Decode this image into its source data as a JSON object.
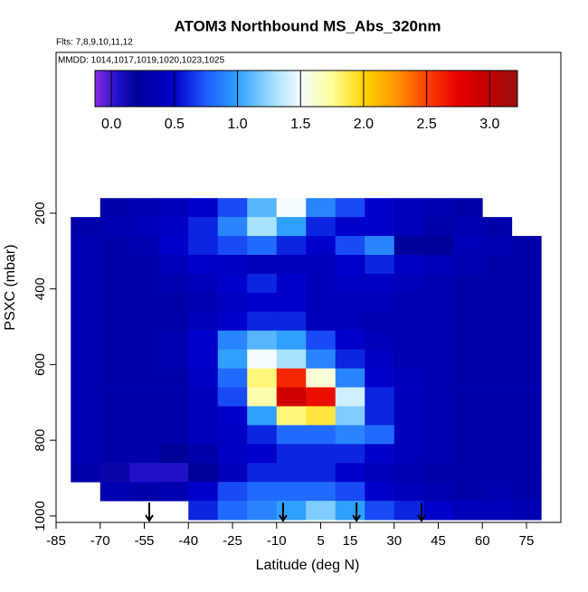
{
  "chart_data": {
    "type": "heatmap",
    "title": "ATOM3 Northbound MS_Abs_320nm",
    "subtitle": "Flts: 7,8,9,10,11,12",
    "annotation": "MMDD: 1014,1017,1019,1020,1023,1025",
    "xlabel": "Latitude (deg N)",
    "ylabel": "PSXC (mbar)",
    "xlim": [
      -85,
      86.7
    ],
    "xticks": [
      -85,
      -70,
      -55,
      -40,
      -25,
      -10,
      5,
      15,
      30,
      45,
      60,
      75
    ],
    "ylim": [
      1017,
      -225
    ],
    "yticks": [
      200,
      400,
      600,
      800,
      1000
    ],
    "x_bins": [
      -80,
      -70,
      -60,
      -50,
      -40,
      -30,
      -20,
      -10,
      0,
      10,
      20,
      30,
      40,
      50,
      60,
      70,
      80
    ],
    "y_bins": [
      160,
      210,
      260,
      310,
      360,
      410,
      460,
      510,
      560,
      610,
      660,
      710,
      760,
      810,
      860,
      910,
      960,
      1010
    ],
    "values": [
      [
        null,
        0.3,
        0.35,
        0.4,
        0.5,
        0.7,
        1.1,
        1.5,
        0.9,
        0.7,
        0.5,
        0.4,
        0.35,
        0.3,
        null,
        null
      ],
      [
        0.3,
        0.35,
        0.4,
        0.45,
        0.6,
        0.9,
        1.3,
        1.0,
        0.6,
        0.5,
        0.5,
        0.4,
        0.3,
        0.35,
        0.3,
        null
      ],
      [
        0.35,
        0.3,
        0.35,
        0.5,
        0.6,
        0.7,
        0.8,
        0.6,
        0.5,
        0.7,
        0.9,
        0.2,
        0.2,
        0.4,
        0.35,
        0.3
      ],
      [
        0.35,
        0.3,
        0.3,
        0.4,
        0.5,
        0.45,
        0.4,
        0.4,
        0.4,
        0.5,
        0.6,
        0.45,
        0.4,
        0.35,
        0.3,
        0.3
      ],
      [
        0.35,
        0.3,
        0.3,
        0.35,
        0.4,
        0.5,
        0.6,
        0.5,
        0.4,
        0.45,
        0.45,
        0.4,
        0.35,
        0.3,
        0.3,
        0.3
      ],
      [
        0.35,
        0.3,
        0.3,
        0.3,
        0.35,
        0.45,
        0.5,
        0.5,
        0.4,
        0.4,
        0.4,
        0.35,
        0.35,
        0.3,
        0.3,
        0.3
      ],
      [
        0.35,
        0.3,
        0.3,
        0.3,
        0.4,
        0.5,
        0.6,
        0.6,
        0.4,
        0.4,
        0.35,
        0.35,
        0.35,
        0.3,
        0.3,
        0.3
      ],
      [
        0.35,
        0.3,
        0.3,
        0.35,
        0.5,
        0.9,
        1.1,
        1.0,
        0.7,
        0.5,
        0.4,
        0.35,
        0.35,
        0.3,
        0.3,
        0.3
      ],
      [
        0.35,
        0.3,
        0.3,
        0.35,
        0.5,
        1.0,
        1.5,
        1.3,
        0.9,
        0.6,
        0.45,
        0.35,
        0.35,
        0.3,
        0.3,
        0.3
      ],
      [
        0.35,
        0.3,
        0.3,
        0.3,
        0.45,
        0.8,
        1.8,
        2.6,
        1.6,
        0.9,
        0.5,
        0.4,
        0.35,
        0.3,
        0.3,
        0.3
      ],
      [
        0.35,
        0.3,
        0.3,
        0.3,
        0.4,
        0.7,
        1.7,
        2.9,
        2.7,
        1.4,
        0.6,
        0.4,
        0.35,
        0.3,
        0.3,
        0.3
      ],
      [
        0.35,
        0.3,
        0.3,
        0.3,
        0.4,
        0.5,
        1.0,
        1.8,
        1.9,
        1.2,
        0.6,
        0.4,
        0.35,
        0.3,
        0.3,
        0.3
      ],
      [
        0.35,
        0.3,
        0.3,
        0.3,
        0.4,
        0.45,
        0.6,
        0.8,
        0.8,
        0.9,
        0.8,
        0.4,
        0.35,
        0.3,
        0.3,
        0.3
      ],
      [
        0.35,
        0.3,
        0.3,
        0.2,
        0.3,
        0.45,
        0.5,
        0.6,
        0.6,
        0.6,
        0.5,
        0.4,
        0.35,
        0.3,
        0.3,
        0.3
      ],
      [
        0.3,
        0.15,
        0.05,
        0.05,
        0.2,
        0.4,
        0.6,
        0.6,
        0.6,
        0.5,
        0.4,
        0.35,
        0.3,
        0.3,
        0.3,
        0.3
      ],
      [
        null,
        0.35,
        0.3,
        0.35,
        0.5,
        0.7,
        0.8,
        0.8,
        0.8,
        0.7,
        0.5,
        0.4,
        0.35,
        0.3,
        0.35,
        0.3
      ],
      [
        null,
        null,
        null,
        null,
        0.6,
        0.8,
        0.9,
        1.0,
        1.2,
        1.0,
        0.7,
        0.6,
        0.5,
        0.4,
        0.4,
        0.35
      ]
    ],
    "arrows_x": [
      -53.3,
      -7.8,
      17.2,
      39.3
    ],
    "colorbar": {
      "lim": [
        -0.13,
        3.22
      ],
      "ticks": [
        {
          "value": 0,
          "label": "0.0"
        },
        0.5,
        {
          "value": 1,
          "label": "1.0"
        },
        1.5,
        {
          "value": 2,
          "label": "2.0"
        },
        2.5,
        {
          "value": 3,
          "label": "3.0"
        }
      ],
      "colorscale": [
        [
          -0.13,
          "#8a2be2"
        ],
        [
          0.05,
          "#2010c8"
        ],
        [
          0.2,
          "#00009a"
        ],
        [
          0.5,
          "#0000cc"
        ],
        [
          0.75,
          "#1e5cff"
        ],
        [
          1.0,
          "#2fa0ff"
        ],
        [
          1.3,
          "#a8e2ff"
        ],
        [
          1.5,
          "#f4fbff"
        ],
        [
          1.75,
          "#ffff99"
        ],
        [
          2.0,
          "#ffd400"
        ],
        [
          2.25,
          "#ff9800"
        ],
        [
          2.5,
          "#ff4000"
        ],
        [
          2.75,
          "#e80000"
        ],
        [
          3.0,
          "#c00000"
        ],
        [
          3.22,
          "#9a1010"
        ]
      ]
    }
  }
}
